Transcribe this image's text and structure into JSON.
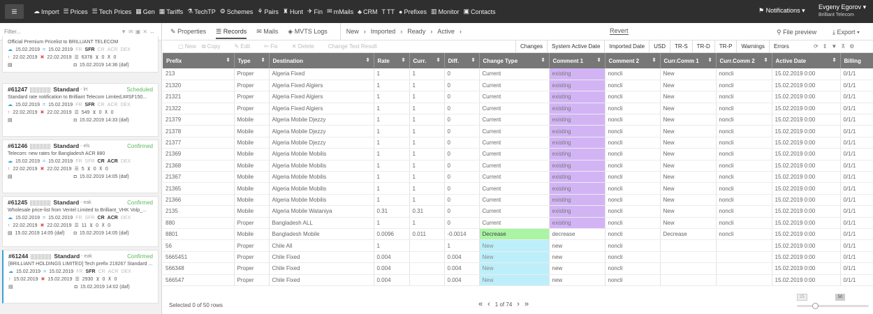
{
  "topbar": {
    "menu_icon": "hamburger-icon",
    "nav": [
      {
        "icon": "cloud-icon",
        "glyph": "☁",
        "label": "Import"
      },
      {
        "icon": "list-icon",
        "glyph": "☰",
        "label": "Prices"
      },
      {
        "icon": "list-icon",
        "glyph": "☰",
        "label": "Tech Prices"
      },
      {
        "icon": "grid-icon",
        "glyph": "▦",
        "label": "Gen"
      },
      {
        "icon": "table-icon",
        "glyph": "▦",
        "label": "Tariffs"
      },
      {
        "icon": "tech-icon",
        "glyph": "⚗",
        "label": "TechTP"
      },
      {
        "icon": "schemes-icon",
        "glyph": "⚙",
        "label": "Schemes"
      },
      {
        "icon": "pairs-icon",
        "glyph": "⚘",
        "label": "Pairs"
      },
      {
        "icon": "hunt-icon",
        "glyph": "♜",
        "label": "Hunt"
      },
      {
        "icon": "fin-icon",
        "glyph": "✈",
        "label": "Fin"
      },
      {
        "icon": "mail-icon",
        "glyph": "✉",
        "label": "mMails"
      },
      {
        "icon": "crm-icon",
        "glyph": "♣",
        "label": "CRM"
      },
      {
        "icon": "tt-icon",
        "glyph": "T",
        "label": "TT"
      },
      {
        "icon": "prefixes-icon",
        "glyph": "●",
        "label": "Prefixes"
      },
      {
        "icon": "monitor-icon",
        "glyph": "▥",
        "label": "Monitor"
      },
      {
        "icon": "contacts-icon",
        "glyph": "▣",
        "label": "Contacts"
      }
    ],
    "notifications_label": "Notifications",
    "user_name": "Evgeny Egorov",
    "company": "Brilliant Telecom"
  },
  "sidebar": {
    "filter_placeholder": "Filter...",
    "top_desc": "Official Premium Pricelist to BRILLIANT TELECOM",
    "top_row1": {
      "d1": "15.02.2019",
      "d2": "15.02.2019",
      "fr": "FR",
      "sfr": "SFR",
      "cr": "CR",
      "acr": "ACR",
      "dex": "DEX"
    },
    "top_row2": {
      "d1": "22.02.2019",
      "d2": "22.02.2019",
      "count": "6378",
      "in": "0",
      "out": "0"
    },
    "top_row3": {
      "date": "15.02.2019 14:36 (daf)"
    },
    "cards": [
      {
        "id": "#61247",
        "type": "Standard",
        "who": "- lrt",
        "status": "Scheduled",
        "desc": "Standard rate notification to Brilliant Telecom Limited,##SF150...",
        "d1": "15.02.2019",
        "d2": "15.02.2019",
        "fr": "FR",
        "sfr": "SFR",
        "cr": "CR",
        "acr": "ACR",
        "dex": "DEX",
        "d3": "22.02.2019",
        "d4": "22.02.2019",
        "count": "549",
        "in": "0",
        "out": "0",
        "sent": "",
        "date": "15.02.2019 14:33 (daf)"
      },
      {
        "id": "#61246",
        "type": "Standard",
        "who": "- els",
        "status": "Confirmed",
        "desc": "Telecom: new rates for Bangladesh ACR 880",
        "d1": "15.02.2019",
        "d2": "15.02.2019",
        "fr": "FR",
        "sfr": "SFR",
        "cr": "CR",
        "acr": "ACR",
        "dex": "DEX",
        "d3": "22.02.2019",
        "d4": "22.02.2019",
        "count": "5",
        "in": "0",
        "out": "0",
        "sent": "",
        "date": "15.02.2019 14:05 (daf)"
      },
      {
        "id": "#61245",
        "type": "Standard",
        "who": "- eak",
        "status": "Confirmed",
        "desc": "Wholesale price-list from Ventel Limited to Brilliant_VHK Volp_...",
        "d1": "15.02.2019",
        "d2": "15.02.2019",
        "fr": "FR",
        "sfr": "SFR",
        "cr": "CR",
        "acr": "ACR",
        "dex": "DEX",
        "d3": "22.02.2019",
        "d4": "22.02.2019",
        "count": "11",
        "in": "0",
        "out": "0",
        "sent": "15.02.2019 14:05 (daf)",
        "date": "15.02.2019 14:05 (daf)"
      },
      {
        "id": "#61244",
        "type": "Standard",
        "who": "- eak",
        "status": "Confirmed",
        "desc": "[BRILLIANT HOLDINGS LIMITED] Tech prefix 219267 Standard ...",
        "d1": "15.02.2019",
        "d2": "15.02.2019",
        "fr": "FR",
        "sfr": "SFR",
        "cr": "CR",
        "acr": "ACR",
        "dex": "DEX",
        "d3": "15.02.2019",
        "d4": "15.02.2019",
        "count": "2930",
        "in": "0",
        "out": "0",
        "sent": "",
        "date": "15.02.2019 14:02 (daf)"
      }
    ]
  },
  "tabs": {
    "properties": "Properties",
    "records": "Records",
    "mails": "Mails",
    "logs": "MVTS Logs",
    "breadcrumb": [
      "New",
      "Imported",
      "Ready",
      "Active"
    ],
    "revert": "Revert",
    "file_preview": "File preview",
    "export": "Export"
  },
  "toolbar": {
    "new": "New",
    "copy": "Copy",
    "edit": "Edit",
    "fix": "Fix",
    "delete": "Delete",
    "change_test": "Change Test Result",
    "groups": [
      "Changes",
      "System Active Date",
      "Imported Date",
      "USD",
      "TR-S",
      "TR-D",
      "TR-P",
      "Warnings",
      "Errors"
    ]
  },
  "grid": {
    "columns": [
      "Prefix",
      "Type",
      "Destination",
      "Rate",
      "Curr.",
      "Diff.",
      "Change Type",
      "Comment 1",
      "Comment 2",
      "Curr.Comm 1",
      "Curr.Comm 2",
      "Active Date",
      "Billing"
    ],
    "rows": [
      [
        "213",
        "Proper",
        "Algeria Fixed",
        "1",
        "1",
        "0",
        "Current",
        "existing",
        "noncli",
        "New",
        "noncli",
        "15.02.2019 0:00",
        "0/1/1"
      ],
      [
        "21320",
        "Proper",
        "Algeria Fixed Algiers",
        "1",
        "1",
        "0",
        "Current",
        "existing",
        "noncli",
        "New",
        "noncli",
        "15.02.2019 0:00",
        "0/1/1"
      ],
      [
        "21321",
        "Proper",
        "Algeria Fixed Algiers",
        "1",
        "1",
        "0",
        "Current",
        "existing",
        "noncli",
        "New",
        "noncli",
        "15.02.2019 0:00",
        "0/1/1"
      ],
      [
        "21322",
        "Proper",
        "Algeria Fixed Algiers",
        "1",
        "1",
        "0",
        "Current",
        "existing",
        "noncli",
        "New",
        "noncli",
        "15.02.2019 0:00",
        "0/1/1"
      ],
      [
        "21379",
        "Mobile",
        "Algeria Mobile Djezzy",
        "1",
        "1",
        "0",
        "Current",
        "existing",
        "noncli",
        "New",
        "noncli",
        "15.02.2019 0:00",
        "0/1/1"
      ],
      [
        "21378",
        "Mobile",
        "Algeria Mobile Djezzy",
        "1",
        "1",
        "0",
        "Current",
        "existing",
        "noncli",
        "New",
        "noncli",
        "15.02.2019 0:00",
        "0/1/1"
      ],
      [
        "21377",
        "Mobile",
        "Algeria Mobile Djezzy",
        "1",
        "1",
        "0",
        "Current",
        "existing",
        "noncli",
        "New",
        "noncli",
        "15.02.2019 0:00",
        "0/1/1"
      ],
      [
        "21369",
        "Mobile",
        "Algeria Mobile Mobilis",
        "1",
        "1",
        "0",
        "Current",
        "existing",
        "noncli",
        "New",
        "noncli",
        "15.02.2019 0:00",
        "0/1/1"
      ],
      [
        "21368",
        "Mobile",
        "Algeria Mobile Mobilis",
        "1",
        "1",
        "0",
        "Current",
        "existing",
        "noncli",
        "New",
        "noncli",
        "15.02.2019 0:00",
        "0/1/1"
      ],
      [
        "21367",
        "Mobile",
        "Algeria Mobile Mobilis",
        "1",
        "1",
        "0",
        "Current",
        "existing",
        "noncli",
        "New",
        "noncli",
        "15.02.2019 0:00",
        "0/1/1"
      ],
      [
        "21365",
        "Mobile",
        "Algeria Mobile Mobilis",
        "1",
        "1",
        "0",
        "Current",
        "existing",
        "noncli",
        "New",
        "noncli",
        "15.02.2019 0:00",
        "0/1/1"
      ],
      [
        "21366",
        "Mobile",
        "Algeria Mobile Mobilis",
        "1",
        "1",
        "0",
        "Current",
        "existing",
        "noncli",
        "New",
        "noncli",
        "15.02.2019 0:00",
        "0/1/1"
      ],
      [
        "2135",
        "Mobile",
        "Algeria Mobile Wataniya",
        "0.31",
        "0.31",
        "0",
        "Current",
        "existing",
        "noncli",
        "New",
        "noncli",
        "15.02.2019 0:00",
        "0/1/1"
      ],
      [
        "880",
        "Proper",
        "Bangladesh ALL",
        "1",
        "1",
        "0",
        "Current",
        "existing",
        "noncli",
        "New",
        "noncli",
        "15.02.2019 0:00",
        "0/1/1"
      ],
      [
        "8801",
        "Mobile",
        "Bangladesh Mobile",
        "0.0096",
        "0.011",
        "-0.0014",
        "Decrease",
        "decrease",
        "noncli",
        "Decrease",
        "noncli",
        "15.02.2019 0:00",
        "0/1/1"
      ],
      [
        "56",
        "Proper",
        "Chile All",
        "1",
        "",
        "1",
        "New",
        "new",
        "noncli",
        "",
        "",
        "15.02.2019 0:00",
        "0/1/1"
      ],
      [
        "5665451",
        "Proper",
        "Chile Fixed",
        "0.004",
        "",
        "0.004",
        "New",
        "new",
        "noncli",
        "",
        "",
        "15.02.2019 0:00",
        "0/1/1"
      ],
      [
        "566348",
        "Proper",
        "Chile Fixed",
        "0.004",
        "",
        "0.004",
        "New",
        "new",
        "noncli",
        "",
        "",
        "15.02.2019 0:00",
        "0/1/1"
      ],
      [
        "566547",
        "Proper",
        "Chile Fixed",
        "0.004",
        "",
        "0.004",
        "New",
        "new",
        "noncli",
        "",
        "",
        "15.02.2019 0:00",
        "0/1/1"
      ]
    ]
  },
  "footer": {
    "selected": "Selected 0 of 50 rows",
    "page_text": "1 of 74",
    "page_sizes": [
      "25",
      "50",
      "500"
    ],
    "page_size_selected": "50"
  },
  "colors": {
    "existing": "#d2b4f5",
    "decrease": "#a9f5a4",
    "new": "#bdeffb",
    "header": "#777777",
    "topbar": "#2f2f2f"
  }
}
